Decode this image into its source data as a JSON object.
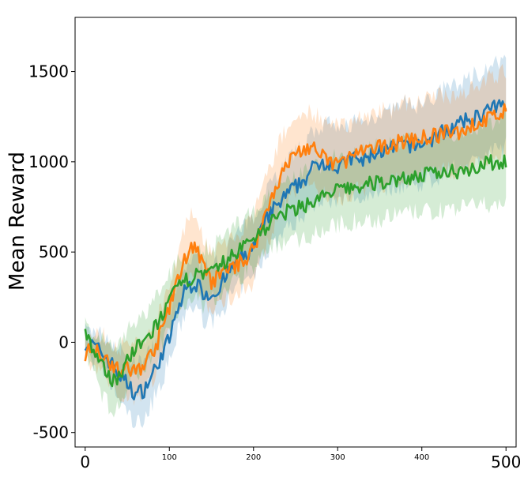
{
  "chart_data": {
    "type": "line",
    "title": "",
    "xlabel": "",
    "ylabel": "Mean Reward",
    "xlim": [
      -12,
      512
    ],
    "ylim": [
      -580,
      1800
    ],
    "grid": false,
    "legend": "none",
    "xticks": [
      {
        "value": 0,
        "label": "0",
        "size": "large"
      },
      {
        "value": 100,
        "label": "100",
        "size": "small"
      },
      {
        "value": 200,
        "label": "200",
        "size": "small"
      },
      {
        "value": 300,
        "label": "300",
        "size": "small"
      },
      {
        "value": 400,
        "label": "400",
        "size": "small"
      },
      {
        "value": 500,
        "label": "500",
        "size": "large"
      }
    ],
    "yticks": [
      {
        "value": -500,
        "label": "-500"
      },
      {
        "value": 0,
        "label": "0"
      },
      {
        "value": 500,
        "label": "500"
      },
      {
        "value": 1000,
        "label": "1000"
      },
      {
        "value": 1500,
        "label": "1500"
      }
    ],
    "series": [
      {
        "color": "#1f77b4",
        "x": [
          0,
          10,
          20,
          30,
          40,
          50,
          60,
          70,
          80,
          90,
          100,
          110,
          120,
          130,
          140,
          150,
          160,
          170,
          180,
          190,
          200,
          210,
          220,
          230,
          240,
          250,
          260,
          270,
          280,
          290,
          300,
          310,
          320,
          330,
          340,
          350,
          360,
          370,
          380,
          390,
          400,
          410,
          420,
          430,
          440,
          450,
          460,
          470,
          480,
          490,
          500
        ],
        "y": [
          0,
          -20,
          -60,
          -110,
          -180,
          -230,
          -290,
          -260,
          -180,
          -80,
          20,
          180,
          300,
          330,
          280,
          260,
          310,
          380,
          450,
          480,
          520,
          620,
          720,
          760,
          820,
          860,
          900,
          960,
          1000,
          1000,
          960,
          1000,
          1020,
          1000,
          1040,
          1060,
          1060,
          1080,
          1100,
          1090,
          1100,
          1120,
          1150,
          1180,
          1190,
          1220,
          1240,
          1260,
          1290,
          1300,
          1330
        ],
        "band": [
          60,
          80,
          100,
          120,
          140,
          160,
          170,
          160,
          150,
          140,
          130,
          130,
          130,
          140,
          150,
          150,
          150,
          150,
          150,
          160,
          160,
          170,
          180,
          180,
          190,
          190,
          190,
          200,
          200,
          200,
          200,
          200,
          210,
          210,
          210,
          210,
          210,
          220,
          220,
          220,
          220,
          220,
          230,
          230,
          230,
          230,
          240,
          240,
          240,
          240,
          240
        ]
      },
      {
        "color": "#ff7f0e",
        "x": [
          0,
          10,
          20,
          30,
          40,
          50,
          60,
          70,
          80,
          90,
          100,
          110,
          120,
          130,
          140,
          150,
          160,
          170,
          180,
          190,
          200,
          210,
          220,
          230,
          240,
          250,
          260,
          270,
          280,
          290,
          300,
          310,
          320,
          330,
          340,
          350,
          360,
          370,
          380,
          390,
          400,
          410,
          420,
          430,
          440,
          450,
          460,
          470,
          480,
          490,
          500
        ],
        "y": [
          -60,
          -30,
          -60,
          -110,
          -160,
          -150,
          -160,
          -120,
          -60,
          50,
          200,
          340,
          480,
          550,
          420,
          330,
          370,
          410,
          430,
          460,
          520,
          650,
          790,
          900,
          980,
          1050,
          1070,
          1080,
          1030,
          1000,
          990,
          1010,
          1040,
          1050,
          1060,
          1080,
          1090,
          1100,
          1120,
          1120,
          1130,
          1140,
          1150,
          1160,
          1160,
          1180,
          1200,
          1220,
          1240,
          1260,
          1280
        ],
        "band": [
          60,
          80,
          100,
          120,
          130,
          140,
          140,
          140,
          140,
          140,
          140,
          150,
          170,
          180,
          170,
          160,
          160,
          160,
          160,
          170,
          180,
          190,
          200,
          200,
          200,
          200,
          200,
          200,
          200,
          200,
          200,
          200,
          200,
          200,
          200,
          200,
          210,
          210,
          210,
          210,
          210,
          210,
          210,
          210,
          210,
          210,
          220,
          220,
          220,
          220,
          220
        ]
      },
      {
        "color": "#2ca02c",
        "x": [
          0,
          10,
          20,
          30,
          40,
          50,
          60,
          70,
          80,
          90,
          100,
          110,
          120,
          130,
          140,
          150,
          160,
          170,
          180,
          190,
          200,
          210,
          220,
          230,
          240,
          250,
          260,
          270,
          280,
          290,
          300,
          310,
          320,
          330,
          340,
          350,
          360,
          370,
          380,
          390,
          400,
          410,
          420,
          430,
          440,
          450,
          460,
          470,
          480,
          490,
          500
        ],
        "y": [
          60,
          -60,
          -140,
          -200,
          -190,
          -100,
          -40,
          0,
          60,
          140,
          220,
          300,
          340,
          380,
          360,
          380,
          420,
          460,
          500,
          540,
          580,
          620,
          660,
          700,
          720,
          740,
          760,
          780,
          800,
          820,
          840,
          850,
          860,
          860,
          880,
          880,
          900,
          900,
          910,
          920,
          920,
          930,
          940,
          950,
          950,
          960,
          970,
          980,
          990,
          1000,
          1010
        ],
        "band": [
          80,
          120,
          160,
          170,
          170,
          160,
          150,
          150,
          150,
          150,
          150,
          150,
          150,
          150,
          150,
          150,
          150,
          150,
          150,
          150,
          150,
          150,
          150,
          150,
          160,
          170,
          180,
          180,
          180,
          190,
          190,
          190,
          190,
          200,
          200,
          200,
          200,
          200,
          200,
          200,
          200,
          210,
          210,
          210,
          210,
          210,
          220,
          220,
          230,
          230,
          230
        ]
      }
    ]
  }
}
